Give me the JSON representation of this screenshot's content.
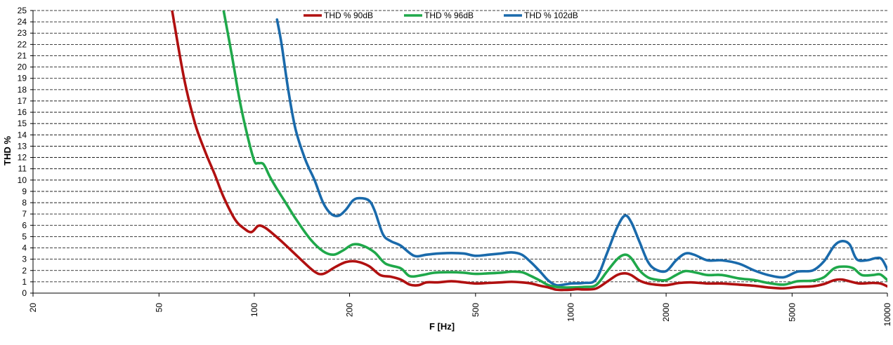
{
  "chart_data": {
    "type": "line",
    "xlabel": "F [Hz]",
    "ylabel": "THD %",
    "xscale": "log",
    "xlim": [
      20,
      10000
    ],
    "ylim": [
      0,
      25
    ],
    "xticks": [
      20,
      50,
      100,
      200,
      500,
      1000,
      2000,
      5000,
      10000
    ],
    "yticks": [
      0,
      1,
      2,
      3,
      4,
      5,
      6,
      7,
      8,
      9,
      10,
      11,
      12,
      13,
      14,
      15,
      16,
      17,
      18,
      19,
      20,
      21,
      22,
      23,
      24,
      25
    ],
    "grid": "horizontal dashed",
    "legend_position": "top",
    "series": [
      {
        "name": "THD % 90dB",
        "color": "#b01010",
        "points": [
          [
            55,
            25
          ],
          [
            60,
            19
          ],
          [
            65,
            15
          ],
          [
            70,
            12.5
          ],
          [
            75,
            10.5
          ],
          [
            80,
            8.5
          ],
          [
            87,
            6.5
          ],
          [
            93,
            5.7
          ],
          [
            98,
            5.4
          ],
          [
            103,
            5.95
          ],
          [
            108,
            5.8
          ],
          [
            115,
            5.2
          ],
          [
            125,
            4.3
          ],
          [
            140,
            3.0
          ],
          [
            155,
            1.9
          ],
          [
            165,
            1.7
          ],
          [
            180,
            2.3
          ],
          [
            195,
            2.75
          ],
          [
            210,
            2.8
          ],
          [
            230,
            2.4
          ],
          [
            250,
            1.6
          ],
          [
            270,
            1.45
          ],
          [
            290,
            1.2
          ],
          [
            310,
            0.75
          ],
          [
            330,
            0.7
          ],
          [
            350,
            0.95
          ],
          [
            380,
            0.95
          ],
          [
            420,
            1.05
          ],
          [
            460,
            0.95
          ],
          [
            500,
            0.85
          ],
          [
            550,
            0.9
          ],
          [
            600,
            0.95
          ],
          [
            650,
            1.0
          ],
          [
            700,
            0.95
          ],
          [
            750,
            0.85
          ],
          [
            800,
            0.65
          ],
          [
            850,
            0.5
          ],
          [
            900,
            0.3
          ],
          [
            950,
            0.28
          ],
          [
            1000,
            0.3
          ],
          [
            1050,
            0.35
          ],
          [
            1100,
            0.32
          ],
          [
            1200,
            0.4
          ],
          [
            1300,
            1.0
          ],
          [
            1400,
            1.6
          ],
          [
            1480,
            1.75
          ],
          [
            1550,
            1.6
          ],
          [
            1650,
            1.1
          ],
          [
            1750,
            0.85
          ],
          [
            1850,
            0.75
          ],
          [
            2000,
            0.7
          ],
          [
            2200,
            0.9
          ],
          [
            2400,
            0.95
          ],
          [
            2700,
            0.85
          ],
          [
            3000,
            0.85
          ],
          [
            3400,
            0.75
          ],
          [
            3800,
            0.65
          ],
          [
            4200,
            0.5
          ],
          [
            4700,
            0.42
          ],
          [
            5200,
            0.55
          ],
          [
            5800,
            0.6
          ],
          [
            6300,
            0.8
          ],
          [
            6800,
            1.15
          ],
          [
            7200,
            1.2
          ],
          [
            7700,
            1.0
          ],
          [
            8200,
            0.85
          ],
          [
            9000,
            0.9
          ],
          [
            9500,
            0.85
          ],
          [
            10000,
            0.6
          ]
        ]
      },
      {
        "name": "THD % 96dB",
        "color": "#1fa84a",
        "points": [
          [
            80,
            25
          ],
          [
            85,
            21
          ],
          [
            90,
            17
          ],
          [
            95,
            14
          ],
          [
            100,
            11.7
          ],
          [
            103,
            11.5
          ],
          [
            107,
            11.4
          ],
          [
            112,
            10.3
          ],
          [
            118,
            9.2
          ],
          [
            125,
            8.1
          ],
          [
            135,
            6.6
          ],
          [
            150,
            4.8
          ],
          [
            165,
            3.7
          ],
          [
            178,
            3.4
          ],
          [
            190,
            3.75
          ],
          [
            205,
            4.3
          ],
          [
            220,
            4.2
          ],
          [
            240,
            3.6
          ],
          [
            260,
            2.6
          ],
          [
            290,
            2.2
          ],
          [
            310,
            1.5
          ],
          [
            340,
            1.6
          ],
          [
            370,
            1.8
          ],
          [
            420,
            1.85
          ],
          [
            460,
            1.8
          ],
          [
            500,
            1.7
          ],
          [
            550,
            1.75
          ],
          [
            600,
            1.8
          ],
          [
            650,
            1.9
          ],
          [
            700,
            1.85
          ],
          [
            750,
            1.5
          ],
          [
            800,
            1.1
          ],
          [
            850,
            0.7
          ],
          [
            900,
            0.55
          ],
          [
            950,
            0.5
          ],
          [
            1000,
            0.5
          ],
          [
            1100,
            0.55
          ],
          [
            1200,
            0.7
          ],
          [
            1300,
            1.9
          ],
          [
            1400,
            3.0
          ],
          [
            1480,
            3.4
          ],
          [
            1550,
            3.1
          ],
          [
            1650,
            2.0
          ],
          [
            1750,
            1.4
          ],
          [
            1850,
            1.2
          ],
          [
            2000,
            1.15
          ],
          [
            2150,
            1.6
          ],
          [
            2300,
            1.95
          ],
          [
            2500,
            1.8
          ],
          [
            2700,
            1.6
          ],
          [
            3000,
            1.6
          ],
          [
            3400,
            1.3
          ],
          [
            3800,
            1.15
          ],
          [
            4200,
            0.9
          ],
          [
            4700,
            0.75
          ],
          [
            5200,
            1.05
          ],
          [
            5800,
            1.1
          ],
          [
            6300,
            1.4
          ],
          [
            6800,
            2.2
          ],
          [
            7300,
            2.35
          ],
          [
            7800,
            2.2
          ],
          [
            8300,
            1.6
          ],
          [
            9000,
            1.6
          ],
          [
            9500,
            1.65
          ],
          [
            10000,
            1.15
          ]
        ]
      },
      {
        "name": "THD % 102dB",
        "color": "#1a6aab",
        "points": [
          [
            118,
            24.2
          ],
          [
            122,
            22
          ],
          [
            128,
            18
          ],
          [
            135,
            14.5
          ],
          [
            145,
            11.8
          ],
          [
            155,
            10
          ],
          [
            165,
            8
          ],
          [
            175,
            7.0
          ],
          [
            185,
            6.85
          ],
          [
            195,
            7.4
          ],
          [
            205,
            8.2
          ],
          [
            215,
            8.4
          ],
          [
            230,
            8.2
          ],
          [
            240,
            7.3
          ],
          [
            255,
            5.2
          ],
          [
            270,
            4.6
          ],
          [
            290,
            4.2
          ],
          [
            320,
            3.3
          ],
          [
            350,
            3.4
          ],
          [
            380,
            3.5
          ],
          [
            420,
            3.55
          ],
          [
            460,
            3.5
          ],
          [
            500,
            3.3
          ],
          [
            550,
            3.4
          ],
          [
            600,
            3.5
          ],
          [
            650,
            3.6
          ],
          [
            700,
            3.4
          ],
          [
            750,
            2.7
          ],
          [
            800,
            1.9
          ],
          [
            850,
            1.1
          ],
          [
            900,
            0.7
          ],
          [
            950,
            0.75
          ],
          [
            1000,
            0.85
          ],
          [
            1100,
            0.9
          ],
          [
            1200,
            1.2
          ],
          [
            1300,
            3.5
          ],
          [
            1400,
            5.8
          ],
          [
            1480,
            6.85
          ],
          [
            1550,
            6.3
          ],
          [
            1650,
            4.5
          ],
          [
            1750,
            2.8
          ],
          [
            1850,
            2.1
          ],
          [
            2000,
            1.95
          ],
          [
            2150,
            2.9
          ],
          [
            2300,
            3.5
          ],
          [
            2450,
            3.4
          ],
          [
            2700,
            2.9
          ],
          [
            3000,
            2.9
          ],
          [
            3400,
            2.6
          ],
          [
            3800,
            2.0
          ],
          [
            4200,
            1.6
          ],
          [
            4700,
            1.4
          ],
          [
            5200,
            1.9
          ],
          [
            5800,
            2.0
          ],
          [
            6300,
            2.8
          ],
          [
            6800,
            4.2
          ],
          [
            7200,
            4.6
          ],
          [
            7600,
            4.3
          ],
          [
            8000,
            3.0
          ],
          [
            8600,
            2.9
          ],
          [
            9200,
            3.1
          ],
          [
            9600,
            3.0
          ],
          [
            10000,
            2.1
          ]
        ]
      }
    ]
  }
}
